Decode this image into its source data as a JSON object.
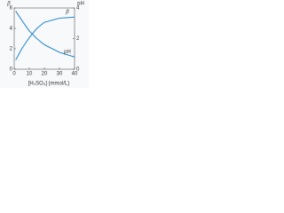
{
  "chart_data": {
    "type": "line",
    "x": [
      1,
      5,
      10,
      15,
      20,
      30,
      40
    ],
    "series": [
      {
        "name": "β",
        "color": "#2f8ccc",
        "values": [
          0.9,
          2.0,
          3.1,
          4.0,
          4.6,
          5.0,
          5.1
        ]
      },
      {
        "name": "pH",
        "color": "#2f8ccc",
        "values": [
          3.8,
          3.2,
          2.5,
          2.0,
          1.6,
          1.1,
          0.8
        ],
        "axis": "y2"
      }
    ],
    "xlabel": "[H₂SO₄] (mmol/L)",
    "ylabel": "β",
    "y2label": "pH",
    "xlim": [
      0,
      40
    ],
    "xticks": [
      0,
      10,
      20,
      30,
      40
    ],
    "ylim": [
      0,
      6
    ],
    "yticks": [
      0,
      2,
      4,
      6
    ],
    "y2lim": [
      0,
      4
    ],
    "y2ticks": [
      0,
      2,
      4
    ]
  }
}
